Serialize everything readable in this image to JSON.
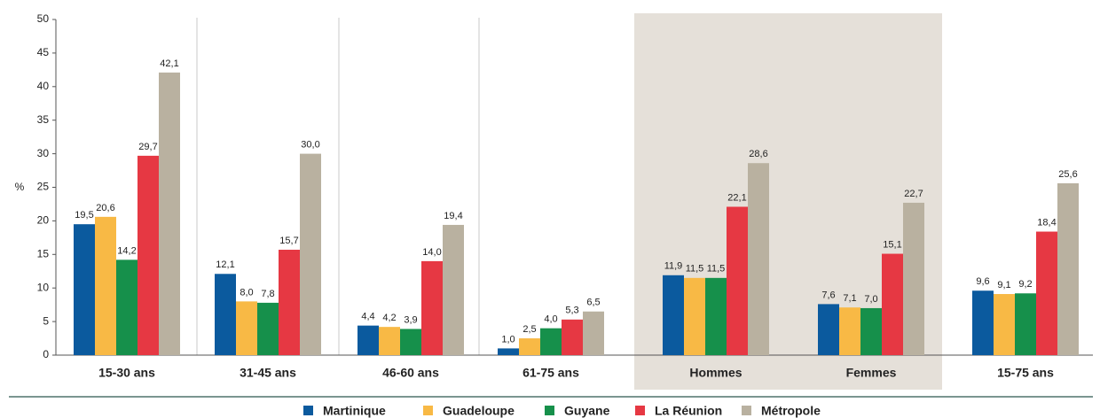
{
  "chart_data": {
    "type": "bar",
    "y_label": "%",
    "categories": [
      "15-30 ans",
      "31-45 ans",
      "46-60 ans",
      "61-75 ans",
      "Hommes",
      "Femmes",
      "15-75 ans"
    ],
    "series": [
      {
        "name": "Martinique",
        "color": "#0b5a9e",
        "values": [
          19.5,
          12.1,
          4.4,
          1.0,
          11.9,
          7.6,
          9.6
        ],
        "value_labels": [
          "19,5",
          "12,1",
          "4,4",
          "1,0",
          "11,9",
          "7,6",
          "9,6"
        ]
      },
      {
        "name": "Guadeloupe",
        "color": "#f8b945",
        "values": [
          20.6,
          8.0,
          4.2,
          2.5,
          11.5,
          7.1,
          9.1
        ],
        "value_labels": [
          "20,6",
          "8,0",
          "4,2",
          "2,5",
          "11,5",
          "7,1",
          "9,1"
        ]
      },
      {
        "name": "Guyane",
        "color": "#16904b",
        "values": [
          14.2,
          7.8,
          3.9,
          4.0,
          11.5,
          7.0,
          9.2
        ],
        "value_labels": [
          "14,2",
          "7,8",
          "3,9",
          "4,0",
          "11,5",
          "7,0",
          "9,2"
        ]
      },
      {
        "name": "La Réunion",
        "color": "#e63843",
        "values": [
          29.7,
          15.7,
          14.0,
          5.3,
          22.1,
          15.1,
          18.4
        ],
        "value_labels": [
          "29,7",
          "15,7",
          "14,0",
          "5,3",
          "22,1",
          "15,1",
          "18,4"
        ]
      },
      {
        "name": "Métropole",
        "color": "#b9b1a0",
        "values": [
          42.1,
          30.0,
          19.4,
          6.5,
          28.6,
          22.7,
          25.6
        ],
        "value_labels": [
          "42,1",
          "30,0",
          "19,4",
          "6,5",
          "28,6",
          "22,7",
          "25,6"
        ]
      }
    ],
    "ylim": [
      0,
      50
    ],
    "yticks": [
      0,
      5,
      10,
      15,
      20,
      25,
      30,
      35,
      40,
      45,
      50
    ]
  }
}
